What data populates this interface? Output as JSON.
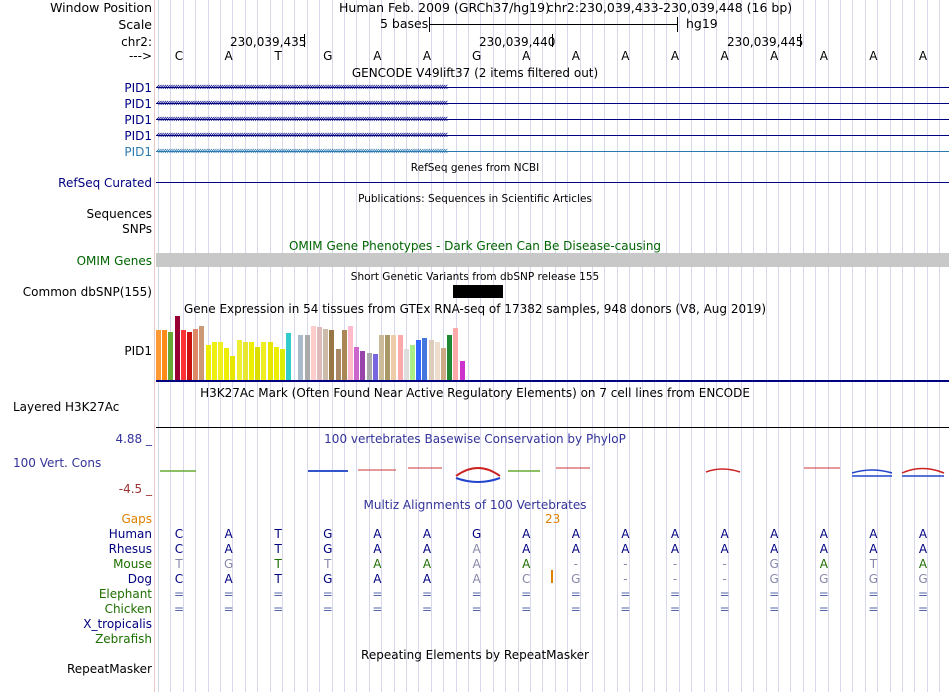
{
  "header": {
    "window_position_label": "Window Position",
    "scale_label": "Scale",
    "chrom_label": "chr2:",
    "strand_label": "--->",
    "assembly": "Human Feb. 2009 (GRCh37/hg19)",
    "position": "chr2:230,039,433-230,039,448 (16 bp)",
    "scale_text": "5 bases",
    "scale_db": "hg19",
    "ruler_ticks": [
      "230,039,435",
      "230,039,440",
      "230,039,445"
    ]
  },
  "sequence": [
    "C",
    "A",
    "T",
    "G",
    "A",
    "A",
    "G",
    "A",
    "A",
    "A",
    "A",
    "A",
    "A",
    "A",
    "A",
    "A"
  ],
  "gencode": {
    "title": "GENCODE V49lift37 (2 items filtered out)",
    "items": [
      "PID1",
      "PID1",
      "PID1",
      "PID1",
      "PID1"
    ]
  },
  "refseq": {
    "title": "RefSeq genes from NCBI",
    "label": "RefSeq Curated"
  },
  "publications": {
    "title": "Publications: Sequences in Scientific Articles",
    "label_sequences": "Sequences",
    "label_snps": "SNPs"
  },
  "omim": {
    "title": "OMIM Gene Phenotypes - Dark Green Can Be Disease-causing",
    "label": "OMIM Genes"
  },
  "dbsnp": {
    "title": "Short Genetic Variants from dbSNP release 155",
    "label": "Common dbSNP(155)"
  },
  "gtex": {
    "title": "Gene Expression in 54 tissues from GTEx RNA-seq of 17382 samples, 948 donors (V8, Aug 2019)",
    "label": "PID1",
    "bars": [
      {
        "color": "#ff9933",
        "value": 0.78
      },
      {
        "color": "#ff8c1a",
        "value": 0.78
      },
      {
        "color": "#66aa33",
        "value": 0.75
      },
      {
        "color": "#990033",
        "value": 1.0
      },
      {
        "color": "#ff3333",
        "value": 0.78
      },
      {
        "color": "#cc1111",
        "value": 0.75
      },
      {
        "color": "#dd8866",
        "value": 0.79
      },
      {
        "color": "#cc9977",
        "value": 0.85
      },
      {
        "color": "#eeee00",
        "value": 0.55
      },
      {
        "color": "#eeee11",
        "value": 0.6
      },
      {
        "color": "#eeee22",
        "value": 0.6
      },
      {
        "color": "#eeee00",
        "value": 0.5
      },
      {
        "color": "#e6e600",
        "value": 0.38
      },
      {
        "color": "#eeee33",
        "value": 0.62
      },
      {
        "color": "#e6e633",
        "value": 0.6
      },
      {
        "color": "#eeee00",
        "value": 0.6
      },
      {
        "color": "#dddd00",
        "value": 0.52
      },
      {
        "color": "#eeee22",
        "value": 0.6
      },
      {
        "color": "#e6e600",
        "value": 0.6
      },
      {
        "color": "#eeee00",
        "value": 0.52
      },
      {
        "color": "#ddee00",
        "value": 0.48
      },
      {
        "color": "#33cccc",
        "value": 0.73
      },
      {
        "color": "#aabbcc",
        "value": 0.7
      },
      {
        "color": "#aaaaaa",
        "value": 0.7
      },
      {
        "color": "#ffcccc",
        "value": 0.85
      },
      {
        "color": "#ddbbbb",
        "value": 0.83
      },
      {
        "color": "#ccbbaa",
        "value": 0.8
      },
      {
        "color": "#997744",
        "value": 0.78
      },
      {
        "color": "#aa8866",
        "value": 0.48
      },
      {
        "color": "#aa8855",
        "value": 0.78
      },
      {
        "color": "#ffbbcc",
        "value": 0.85
      },
      {
        "color": "#cc66cc",
        "value": 0.52
      },
      {
        "color": "#9944aa",
        "value": 0.45
      },
      {
        "color": "#aaaaaa",
        "value": 0.42
      },
      {
        "color": "#7766dd",
        "value": 0.4
      },
      {
        "color": "#ccbb99",
        "value": 0.7
      },
      {
        "color": "#aa9966",
        "value": 0.7
      },
      {
        "color": "#eeccaa",
        "value": 0.7
      },
      {
        "color": "#ffaaaa",
        "value": 0.7
      },
      {
        "color": "#dddddd",
        "value": 0.48
      },
      {
        "color": "#aaee88",
        "value": 0.55
      },
      {
        "color": "#3366ff",
        "value": 0.62
      },
      {
        "color": "#4477dd",
        "value": 0.65
      },
      {
        "color": "#ddccbb",
        "value": 0.62
      },
      {
        "color": "#eeddcc",
        "value": 0.6
      },
      {
        "color": "#ccaa88",
        "value": 0.5
      },
      {
        "color": "#228833",
        "value": 0.7
      },
      {
        "color": "#ffaaaa",
        "value": 0.82
      },
      {
        "color": "#cc33cc",
        "value": 0.3
      }
    ]
  },
  "h3k27ac": {
    "title": "H3K27Ac Mark (Often Found Near Active Regulatory Elements) on 7 cell lines from ENCODE",
    "label": "Layered H3K27Ac"
  },
  "conservation": {
    "title": "100 vertebrates Basewise Conservation by PhyloP",
    "label": "100 Vert. Cons",
    "ymax": "4.88 _",
    "ymin": "-4.5 _"
  },
  "multiz": {
    "title": "Multiz Alignments of 100 Vertebrates",
    "gaps_label": "Gaps",
    "gap_count": "23",
    "species": [
      {
        "name": "Human",
        "color": "#000080",
        "bases": [
          "C",
          "A",
          "T",
          "G",
          "A",
          "A",
          "G",
          "A",
          "A",
          "A",
          "A",
          "A",
          "A",
          "A",
          "A",
          "A"
        ]
      },
      {
        "name": "Rhesus",
        "color": "#000080",
        "bases": [
          "C",
          "A",
          "T",
          "G",
          "A",
          "A",
          "A",
          "A",
          "A",
          "A",
          "A",
          "A",
          "A",
          "A",
          "A",
          "A"
        ]
      },
      {
        "name": "Mouse",
        "color": "#1e6e00",
        "bases": [
          "T",
          "G",
          "T",
          "T",
          "A",
          "A",
          "A",
          "A",
          "-",
          "-",
          "-",
          "-",
          "G",
          "A",
          "T",
          "A"
        ]
      },
      {
        "name": "Dog",
        "color": "#000080",
        "bases": [
          "C",
          "A",
          "T",
          "G",
          "A",
          "A",
          "A",
          "C",
          "G",
          "-",
          "-",
          "-",
          "G",
          "G",
          "G",
          "G"
        ]
      },
      {
        "name": "Elephant",
        "color": "#1e6e00",
        "bases": [
          "=",
          "=",
          "=",
          "=",
          "=",
          "=",
          "=",
          "=",
          "=",
          "=",
          "=",
          "=",
          "=",
          "=",
          "=",
          "="
        ]
      },
      {
        "name": "Chicken",
        "color": "#1e6e00",
        "bases": [
          "=",
          "=",
          "=",
          "=",
          "=",
          "=",
          "=",
          "=",
          "=",
          "=",
          "=",
          "=",
          "=",
          "=",
          "=",
          "="
        ]
      },
      {
        "name": "X_tropicalis",
        "color": "#000080",
        "bases": []
      },
      {
        "name": "Zebrafish",
        "color": "#1e6e00",
        "bases": []
      }
    ]
  },
  "repeatmasker": {
    "title": "Repeating Elements by RepeatMasker",
    "label": "RepeatMasker"
  },
  "colors": {
    "gene_blue": "#000080",
    "gencode_light": "#2a7ab0",
    "omim_green": "#006400",
    "cons_blue": "#333399",
    "cons_red": "#993333",
    "gap_orange": "#e08000",
    "omim_bar": "#c8c8c8"
  }
}
